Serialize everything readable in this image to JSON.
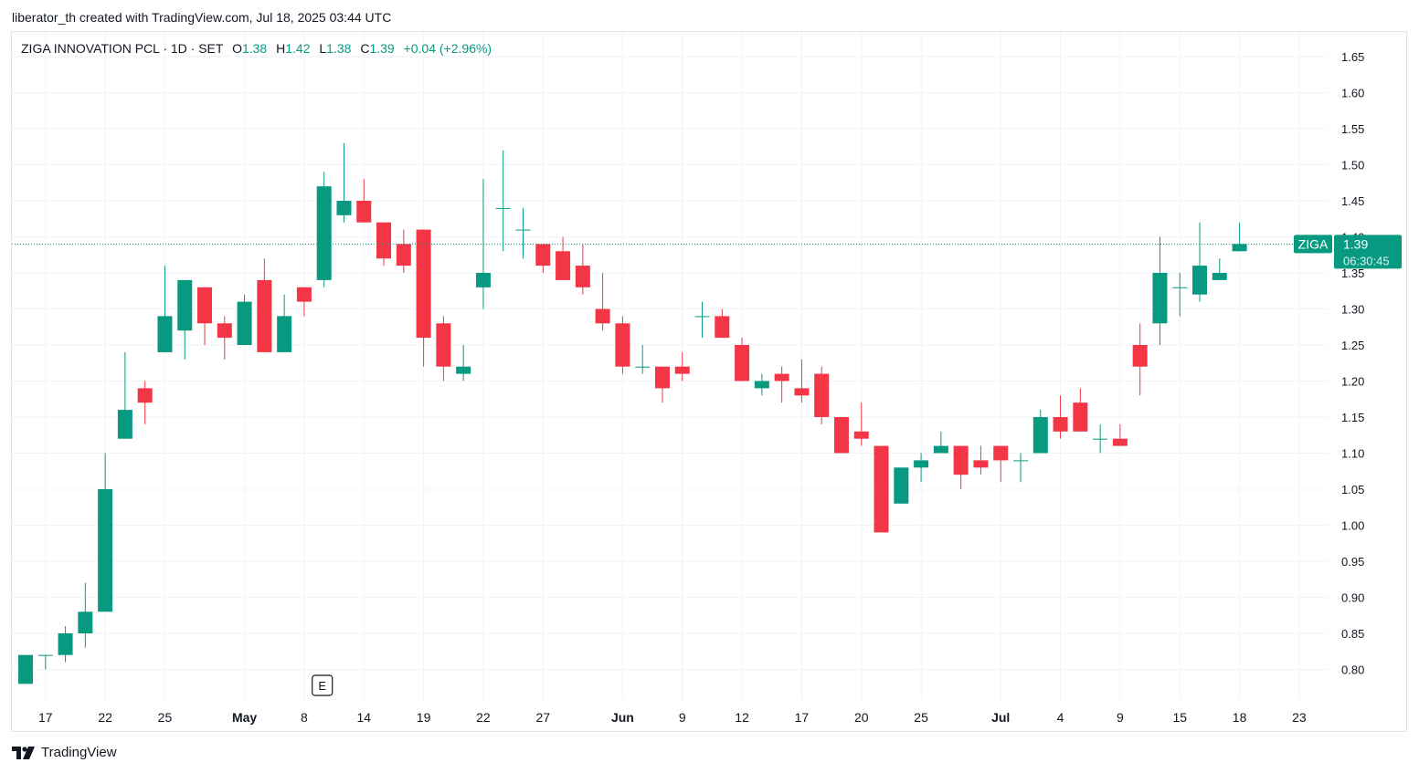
{
  "caption": "liberator_th created with TradingView.com, Jul 18, 2025 03:44 UTC",
  "legend": {
    "symbol": "ZIGA INNOVATION PCL · 1D · SET",
    "o_label": "O",
    "o": "1.38",
    "h_label": "H",
    "h": "1.42",
    "l_label": "L",
    "l": "1.38",
    "c_label": "C",
    "c": "1.39",
    "change": "+0.04 (+2.96%)"
  },
  "brand": "TradingView",
  "price_label": {
    "ticker": "ZIGA",
    "price": "1.39",
    "countdown": "06:30:45"
  },
  "event_marker": {
    "label": "E",
    "x_index": 15
  },
  "colors": {
    "up": "#089981",
    "down": "#f23645",
    "grid": "#f0f3fa",
    "frame": "#e0e3eb",
    "text": "#131722"
  },
  "chart_data": {
    "type": "candlestick",
    "ylim": [
      0.76,
      1.67
    ],
    "y_ticks": [
      "0.80",
      "0.85",
      "0.90",
      "0.95",
      "1.00",
      "1.05",
      "1.10",
      "1.15",
      "1.20",
      "1.25",
      "1.30",
      "1.35",
      "1.40",
      "1.45",
      "1.50",
      "1.55",
      "1.60",
      "1.65"
    ],
    "x_ticks": [
      {
        "label": "17",
        "i": 1
      },
      {
        "label": "22",
        "i": 4
      },
      {
        "label": "25",
        "i": 7
      },
      {
        "label": "May",
        "i": 11,
        "bold": true
      },
      {
        "label": "8",
        "i": 14
      },
      {
        "label": "14",
        "i": 17
      },
      {
        "label": "19",
        "i": 20
      },
      {
        "label": "22",
        "i": 23
      },
      {
        "label": "27",
        "i": 26
      },
      {
        "label": "Jun",
        "i": 30,
        "bold": true
      },
      {
        "label": "9",
        "i": 33
      },
      {
        "label": "12",
        "i": 36
      },
      {
        "label": "17",
        "i": 39
      },
      {
        "label": "20",
        "i": 42
      },
      {
        "label": "25",
        "i": 45
      },
      {
        "label": "Jul",
        "i": 49,
        "bold": true
      },
      {
        "label": "4",
        "i": 52
      },
      {
        "label": "9",
        "i": 55
      },
      {
        "label": "15",
        "i": 58
      },
      {
        "label": "18",
        "i": 61
      },
      {
        "label": "23",
        "i": 64
      }
    ],
    "current_price": 1.39,
    "candles": [
      {
        "o": 0.78,
        "h": 0.82,
        "l": 0.78,
        "c": 0.82
      },
      {
        "o": 0.82,
        "h": 0.82,
        "l": 0.8,
        "c": 0.82
      },
      {
        "o": 0.82,
        "h": 0.86,
        "l": 0.81,
        "c": 0.85
      },
      {
        "o": 0.85,
        "h": 0.92,
        "l": 0.83,
        "c": 0.88
      },
      {
        "o": 0.88,
        "h": 1.1,
        "l": 0.88,
        "c": 1.05
      },
      {
        "o": 1.12,
        "h": 1.24,
        "l": 1.12,
        "c": 1.16
      },
      {
        "o": 1.19,
        "h": 1.2,
        "l": 1.14,
        "c": 1.17
      },
      {
        "o": 1.24,
        "h": 1.36,
        "l": 1.24,
        "c": 1.29
      },
      {
        "o": 1.27,
        "h": 1.34,
        "l": 1.23,
        "c": 1.34
      },
      {
        "o": 1.33,
        "h": 1.33,
        "l": 1.25,
        "c": 1.28
      },
      {
        "o": 1.28,
        "h": 1.29,
        "l": 1.23,
        "c": 1.26
      },
      {
        "o": 1.25,
        "h": 1.32,
        "l": 1.25,
        "c": 1.31
      },
      {
        "o": 1.34,
        "h": 1.37,
        "l": 1.24,
        "c": 1.24
      },
      {
        "o": 1.24,
        "h": 1.32,
        "l": 1.24,
        "c": 1.29
      },
      {
        "o": 1.33,
        "h": 1.33,
        "l": 1.29,
        "c": 1.31
      },
      {
        "o": 1.34,
        "h": 1.49,
        "l": 1.33,
        "c": 1.47
      },
      {
        "o": 1.43,
        "h": 1.53,
        "l": 1.42,
        "c": 1.45
      },
      {
        "o": 1.45,
        "h": 1.48,
        "l": 1.42,
        "c": 1.42
      },
      {
        "o": 1.42,
        "h": 1.42,
        "l": 1.36,
        "c": 1.37
      },
      {
        "o": 1.39,
        "h": 1.41,
        "l": 1.35,
        "c": 1.36
      },
      {
        "o": 1.41,
        "h": 1.41,
        "l": 1.22,
        "c": 1.26
      },
      {
        "o": 1.28,
        "h": 1.29,
        "l": 1.2,
        "c": 1.22
      },
      {
        "o": 1.21,
        "h": 1.25,
        "l": 1.2,
        "c": 1.22
      },
      {
        "o": 1.33,
        "h": 1.48,
        "l": 1.3,
        "c": 1.35
      },
      {
        "o": 1.44,
        "h": 1.52,
        "l": 1.38,
        "c": 1.44
      },
      {
        "o": 1.41,
        "h": 1.44,
        "l": 1.37,
        "c": 1.41
      },
      {
        "o": 1.39,
        "h": 1.39,
        "l": 1.35,
        "c": 1.36
      },
      {
        "o": 1.38,
        "h": 1.4,
        "l": 1.34,
        "c": 1.34
      },
      {
        "o": 1.36,
        "h": 1.39,
        "l": 1.32,
        "c": 1.33
      },
      {
        "o": 1.3,
        "h": 1.35,
        "l": 1.27,
        "c": 1.28
      },
      {
        "o": 1.28,
        "h": 1.29,
        "l": 1.21,
        "c": 1.22
      },
      {
        "o": 1.22,
        "h": 1.25,
        "l": 1.21,
        "c": 1.22
      },
      {
        "o": 1.22,
        "h": 1.22,
        "l": 1.17,
        "c": 1.19
      },
      {
        "o": 1.22,
        "h": 1.24,
        "l": 1.2,
        "c": 1.21
      },
      {
        "o": 1.29,
        "h": 1.31,
        "l": 1.26,
        "c": 1.29
      },
      {
        "o": 1.29,
        "h": 1.3,
        "l": 1.26,
        "c": 1.26
      },
      {
        "o": 1.25,
        "h": 1.26,
        "l": 1.2,
        "c": 1.2
      },
      {
        "o": 1.19,
        "h": 1.21,
        "l": 1.18,
        "c": 1.2
      },
      {
        "o": 1.21,
        "h": 1.22,
        "l": 1.17,
        "c": 1.2
      },
      {
        "o": 1.19,
        "h": 1.23,
        "l": 1.17,
        "c": 1.18
      },
      {
        "o": 1.21,
        "h": 1.22,
        "l": 1.14,
        "c": 1.15
      },
      {
        "o": 1.15,
        "h": 1.15,
        "l": 1.1,
        "c": 1.1
      },
      {
        "o": 1.13,
        "h": 1.17,
        "l": 1.11,
        "c": 1.12
      },
      {
        "o": 1.11,
        "h": 1.11,
        "l": 0.99,
        "c": 0.99
      },
      {
        "o": 1.03,
        "h": 1.08,
        "l": 1.03,
        "c": 1.08
      },
      {
        "o": 1.08,
        "h": 1.1,
        "l": 1.06,
        "c": 1.09
      },
      {
        "o": 1.1,
        "h": 1.13,
        "l": 1.1,
        "c": 1.11
      },
      {
        "o": 1.11,
        "h": 1.11,
        "l": 1.05,
        "c": 1.07
      },
      {
        "o": 1.09,
        "h": 1.11,
        "l": 1.07,
        "c": 1.08
      },
      {
        "o": 1.11,
        "h": 1.11,
        "l": 1.06,
        "c": 1.09
      },
      {
        "o": 1.09,
        "h": 1.1,
        "l": 1.06,
        "c": 1.09
      },
      {
        "o": 1.1,
        "h": 1.16,
        "l": 1.1,
        "c": 1.15
      },
      {
        "o": 1.15,
        "h": 1.18,
        "l": 1.12,
        "c": 1.13
      },
      {
        "o": 1.17,
        "h": 1.19,
        "l": 1.13,
        "c": 1.13
      },
      {
        "o": 1.12,
        "h": 1.14,
        "l": 1.1,
        "c": 1.12
      },
      {
        "o": 1.12,
        "h": 1.14,
        "l": 1.11,
        "c": 1.11
      },
      {
        "o": 1.25,
        "h": 1.28,
        "l": 1.18,
        "c": 1.22
      },
      {
        "o": 1.28,
        "h": 1.4,
        "l": 1.25,
        "c": 1.35
      },
      {
        "o": 1.33,
        "h": 1.35,
        "l": 1.29,
        "c": 1.33
      },
      {
        "o": 1.32,
        "h": 1.42,
        "l": 1.31,
        "c": 1.36
      },
      {
        "o": 1.34,
        "h": 1.37,
        "l": 1.34,
        "c": 1.35
      },
      {
        "o": 1.38,
        "h": 1.42,
        "l": 1.38,
        "c": 1.39
      }
    ]
  }
}
